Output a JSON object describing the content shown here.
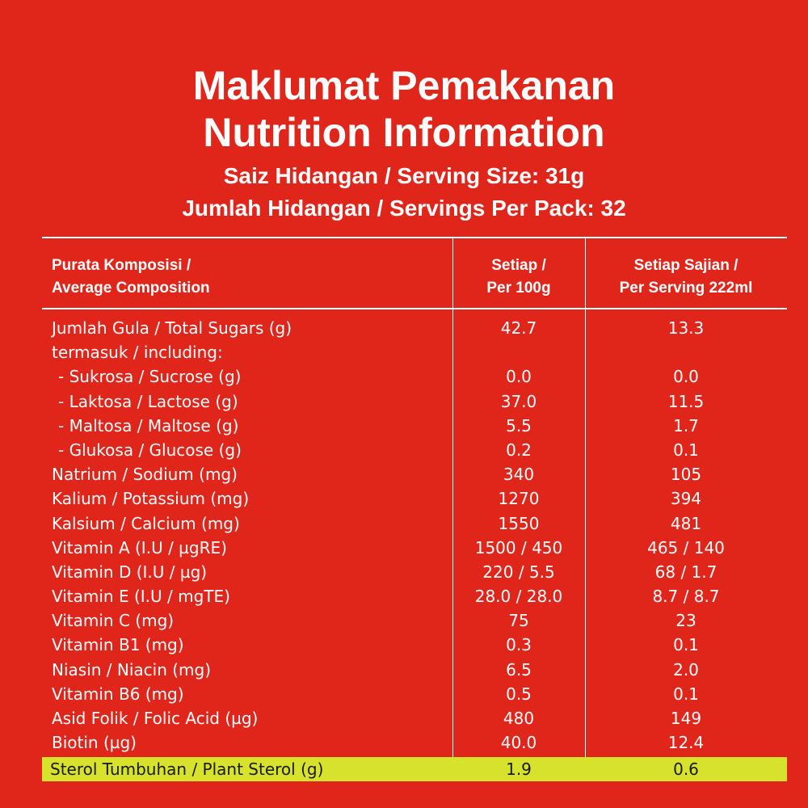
{
  "header": {
    "title_ms": "Maklumat Pemakanan",
    "title_en": "Nutrition Information",
    "serving_size": "Saiz Hidangan / Serving Size: 31g",
    "servings_per_pack": "Jumlah Hidangan / Servings Per Pack: 32"
  },
  "table": {
    "columns": {
      "composition": [
        "Purata Komposisi /",
        "Average Composition"
      ],
      "per_100g": [
        "Setiap /",
        "Per 100g"
      ],
      "per_serving": [
        "Setiap Sajian /",
        "Per Serving 222ml"
      ]
    },
    "rows": [
      {
        "name": "Jumlah Gula / Total Sugars (g)",
        "per_100g": "42.7",
        "per_serving": "13.3",
        "indent": false
      },
      {
        "name": "termasuk / including:",
        "per_100g": "",
        "per_serving": "",
        "indent": false
      },
      {
        "name": "- Sukrosa / Sucrose (g)",
        "per_100g": "0.0",
        "per_serving": "0.0",
        "indent": true
      },
      {
        "name": "- Laktosa / Lactose (g)",
        "per_100g": "37.0",
        "per_serving": "11.5",
        "indent": true
      },
      {
        "name": "- Maltosa / Maltose (g)",
        "per_100g": "5.5",
        "per_serving": "1.7",
        "indent": true
      },
      {
        "name": "- Glukosa / Glucose (g)",
        "per_100g": "0.2",
        "per_serving": "0.1",
        "indent": true
      },
      {
        "name": "Natrium / Sodium (mg)",
        "per_100g": "340",
        "per_serving": "105",
        "indent": false
      },
      {
        "name": "Kalium / Potassium (mg)",
        "per_100g": "1270",
        "per_serving": "394",
        "indent": false
      },
      {
        "name": "Kalsium / Calcium (mg)",
        "per_100g": "1550",
        "per_serving": "481",
        "indent": false
      },
      {
        "name": "Vitamin A (I.U / µgRE)",
        "per_100g": "1500 / 450",
        "per_serving": "465 / 140",
        "indent": false
      },
      {
        "name": "Vitamin D (I.U / µg)",
        "per_100g": "220 / 5.5",
        "per_serving": "68 / 1.7",
        "indent": false
      },
      {
        "name": "Vitamin E (I.U / mgTE)",
        "per_100g": "28.0 / 28.0",
        "per_serving": "8.7 / 8.7",
        "indent": false
      },
      {
        "name": "Vitamin C (mg)",
        "per_100g": "75",
        "per_serving": "23",
        "indent": false
      },
      {
        "name": "Vitamin B1 (mg)",
        "per_100g": "0.3",
        "per_serving": "0.1",
        "indent": false
      },
      {
        "name": "Niasin / Niacin (mg)",
        "per_100g": "6.5",
        "per_serving": "2.0",
        "indent": false
      },
      {
        "name": "Vitamin B6 (mg)",
        "per_100g": "0.5",
        "per_serving": "0.1",
        "indent": false
      },
      {
        "name": "Asid Folik / Folic Acid (µg)",
        "per_100g": "480",
        "per_serving": "149",
        "indent": false
      },
      {
        "name": "Biotin (µg)",
        "per_100g": "40.0",
        "per_serving": "12.4",
        "indent": false
      }
    ],
    "highlight_row": {
      "name": "Sterol Tumbuhan / Plant Sterol (g)",
      "per_100g": "1.9",
      "per_serving": "0.6"
    }
  },
  "colors": {
    "background": "#e0251b",
    "text": "#ffffff",
    "highlight": "#d7e22c"
  }
}
